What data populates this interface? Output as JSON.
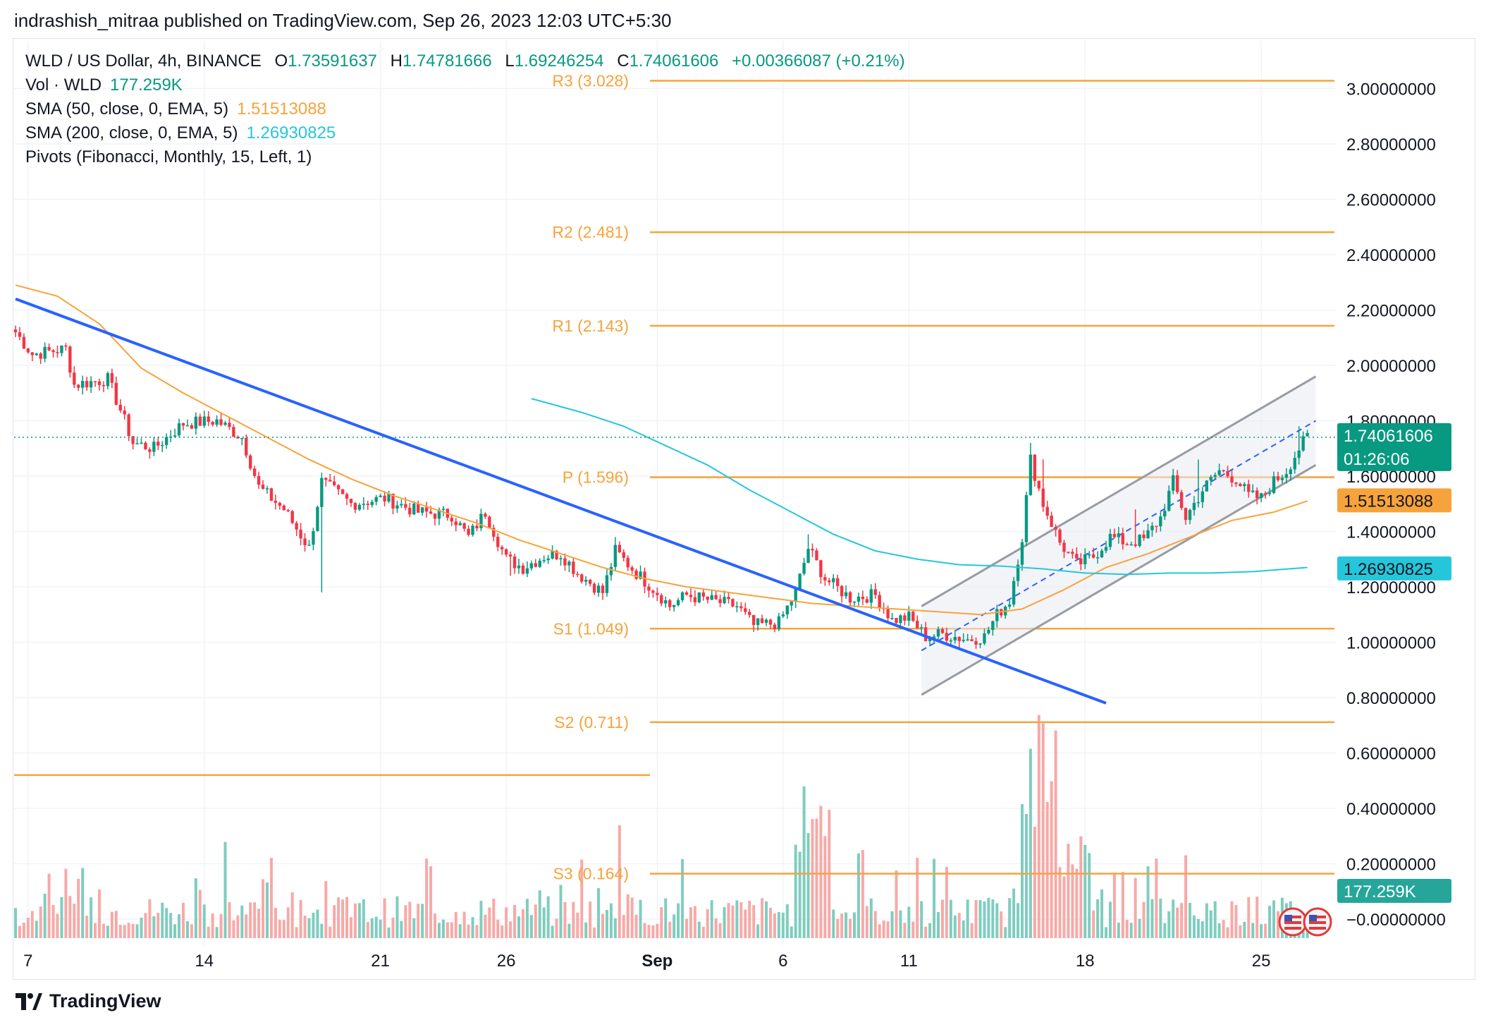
{
  "header": {
    "published_text": "indrashish_mitraa published on TradingView.com, Sep 26, 2023 12:03 UTC+5:30"
  },
  "legend": {
    "symbol": "WLD / US Dollar, 4h, BINANCE",
    "open_label": "O",
    "open": "1.73591637",
    "high_label": "H",
    "high": "1.74781666",
    "low_label": "L",
    "low": "1.69246254",
    "close_label": "C",
    "close": "1.74061606",
    "change": "+0.00366087 (+0.21%)",
    "vol_label": "Vol · WLD",
    "vol": "177.259K",
    "sma50_label": "SMA (50, close, 0, EMA, 5)",
    "sma50": "1.51513088",
    "sma200_label": "SMA (200, close, 0, EMA, 5)",
    "sma200": "1.26930825",
    "pivots_label": "Pivots (Fibonacci, Monthly, 15, Left, 1)"
  },
  "footer": {
    "brand": "TradingView"
  },
  "chart_data": {
    "type": "candlestick",
    "symbol": "WLD / US Dollar",
    "timeframe": "4h",
    "exchange": "BINANCE",
    "ylim": [
      -0.05,
      3.1
    ],
    "y_ticks": [
      "3.00000000",
      "2.80000000",
      "2.60000000",
      "2.40000000",
      "2.20000000",
      "2.00000000",
      "1.80000000",
      "1.60000000",
      "1.40000000",
      "1.20000000",
      "1.00000000",
      "0.80000000",
      "0.60000000",
      "0.40000000",
      "0.20000000",
      "−0.00000000"
    ],
    "x_ticks": [
      {
        "label": "7",
        "index": 3
      },
      {
        "label": "14",
        "index": 45
      },
      {
        "label": "21",
        "index": 87
      },
      {
        "label": "26",
        "index": 117
      },
      {
        "label": "Sep",
        "index": 153,
        "bold": true
      },
      {
        "label": "6",
        "index": 183
      },
      {
        "label": "11",
        "index": 213
      },
      {
        "label": "18",
        "index": 255
      },
      {
        "label": "25",
        "index": 297
      }
    ],
    "pivots": [
      {
        "label": "R3 (3.028)",
        "value": 3.028
      },
      {
        "label": "R2 (2.481)",
        "value": 2.481
      },
      {
        "label": "R1 (2.143)",
        "value": 2.143
      },
      {
        "label": "P (1.596)",
        "value": 1.596
      },
      {
        "label": "S1 (1.049)",
        "value": 1.049
      },
      {
        "label": "S2 (0.711)",
        "value": 0.711
      },
      {
        "label": "S3 (0.164)",
        "value": 0.164
      }
    ],
    "prev_pivot_value": 0.52,
    "price_labels": {
      "last": "1.74061606",
      "countdown": "01:26:06",
      "sma50": "1.51513088",
      "sma200": "1.26930825",
      "volume": "177.259K"
    },
    "last_price": 1.7406,
    "anchors": [
      [
        0,
        2.12
      ],
      [
        4,
        2.04
      ],
      [
        12,
        2.06
      ],
      [
        14,
        1.93
      ],
      [
        22,
        1.95
      ],
      [
        25,
        1.84
      ],
      [
        28,
        1.72
      ],
      [
        33,
        1.7
      ],
      [
        40,
        1.79
      ],
      [
        48,
        1.8
      ],
      [
        54,
        1.74
      ],
      [
        58,
        1.56
      ],
      [
        64,
        1.48
      ],
      [
        70,
        1.34
      ],
      [
        73,
        1.58
      ],
      [
        80,
        1.5
      ],
      [
        88,
        1.52
      ],
      [
        96,
        1.47
      ],
      [
        104,
        1.46
      ],
      [
        108,
        1.38
      ],
      [
        112,
        1.47
      ],
      [
        117,
        1.3
      ],
      [
        121,
        1.27
      ],
      [
        126,
        1.31
      ],
      [
        130,
        1.32
      ],
      [
        134,
        1.25
      ],
      [
        140,
        1.18
      ],
      [
        143,
        1.33
      ],
      [
        148,
        1.25
      ],
      [
        153,
        1.18
      ],
      [
        156,
        1.13
      ],
      [
        160,
        1.17
      ],
      [
        166,
        1.15
      ],
      [
        172,
        1.13
      ],
      [
        176,
        1.06
      ],
      [
        182,
        1.07
      ],
      [
        186,
        1.18
      ],
      [
        189,
        1.34
      ],
      [
        193,
        1.23
      ],
      [
        199,
        1.16
      ],
      [
        205,
        1.17
      ],
      [
        209,
        1.08
      ],
      [
        213,
        1.09
      ],
      [
        217,
        1.02
      ],
      [
        221,
        1.03
      ],
      [
        227,
        1.01
      ],
      [
        231,
        1.02
      ],
      [
        234,
        1.1
      ],
      [
        237,
        1.15
      ],
      [
        240,
        1.38
      ],
      [
        242,
        1.66
      ],
      [
        245,
        1.5
      ],
      [
        249,
        1.36
      ],
      [
        253,
        1.28
      ],
      [
        257,
        1.31
      ],
      [
        261,
        1.38
      ],
      [
        265,
        1.36
      ],
      [
        269,
        1.37
      ],
      [
        273,
        1.45
      ],
      [
        276,
        1.58
      ],
      [
        279,
        1.45
      ],
      [
        283,
        1.55
      ],
      [
        287,
        1.62
      ],
      [
        291,
        1.59
      ],
      [
        294,
        1.53
      ],
      [
        297,
        1.52
      ],
      [
        300,
        1.58
      ],
      [
        303,
        1.62
      ],
      [
        306,
        1.7
      ],
      [
        308,
        1.74
      ]
    ],
    "spikes": {
      "high": [
        [
          28,
          1.65
        ],
        [
          73,
          1.2
        ],
        [
          143,
          1.38
        ],
        [
          189,
          1.39
        ],
        [
          242,
          1.72
        ],
        [
          245,
          1.66
        ],
        [
          267,
          1.48
        ],
        [
          282,
          1.66
        ],
        [
          306,
          1.78
        ]
      ],
      "low": [
        [
          73,
          1.18
        ],
        [
          118,
          1.24
        ]
      ]
    },
    "sma50": {
      "start": 0,
      "values": [
        [
          0,
          2.29
        ],
        [
          10,
          2.25
        ],
        [
          20,
          2.15
        ],
        [
          30,
          1.99
        ],
        [
          40,
          1.9
        ],
        [
          50,
          1.82
        ],
        [
          60,
          1.74
        ],
        [
          70,
          1.66
        ],
        [
          80,
          1.59
        ],
        [
          90,
          1.53
        ],
        [
          100,
          1.48
        ],
        [
          110,
          1.43
        ],
        [
          120,
          1.37
        ],
        [
          130,
          1.32
        ],
        [
          140,
          1.27
        ],
        [
          150,
          1.23
        ],
        [
          160,
          1.2
        ],
        [
          170,
          1.18
        ],
        [
          180,
          1.16
        ],
        [
          190,
          1.14
        ],
        [
          200,
          1.13
        ],
        [
          210,
          1.12
        ],
        [
          220,
          1.11
        ],
        [
          230,
          1.1
        ],
        [
          240,
          1.12
        ],
        [
          250,
          1.19
        ],
        [
          260,
          1.27
        ],
        [
          270,
          1.32
        ],
        [
          280,
          1.38
        ],
        [
          290,
          1.44
        ],
        [
          300,
          1.47
        ],
        [
          308,
          1.51
        ]
      ]
    },
    "sma200": {
      "values": [
        [
          123,
          1.88
        ],
        [
          135,
          1.83
        ],
        [
          145,
          1.78
        ],
        [
          155,
          1.71
        ],
        [
          165,
          1.64
        ],
        [
          175,
          1.55
        ],
        [
          185,
          1.47
        ],
        [
          195,
          1.39
        ],
        [
          205,
          1.33
        ],
        [
          215,
          1.3
        ],
        [
          225,
          1.28
        ],
        [
          235,
          1.275
        ],
        [
          245,
          1.265
        ],
        [
          255,
          1.25
        ],
        [
          265,
          1.245
        ],
        [
          275,
          1.25
        ],
        [
          285,
          1.25
        ],
        [
          295,
          1.255
        ],
        [
          308,
          1.27
        ]
      ]
    },
    "trendline": {
      "from": [
        0,
        2.24
      ],
      "to": [
        260,
        0.78
      ]
    },
    "channel": {
      "upper": [
        [
          216,
          1.13
        ],
        [
          310,
          1.96
        ]
      ],
      "lower": [
        [
          216,
          0.81
        ],
        [
          310,
          1.64
        ]
      ],
      "mid": [
        [
          216,
          0.97
        ],
        [
          310,
          1.8
        ]
      ]
    },
    "volume_max_label": "177.259K"
  }
}
